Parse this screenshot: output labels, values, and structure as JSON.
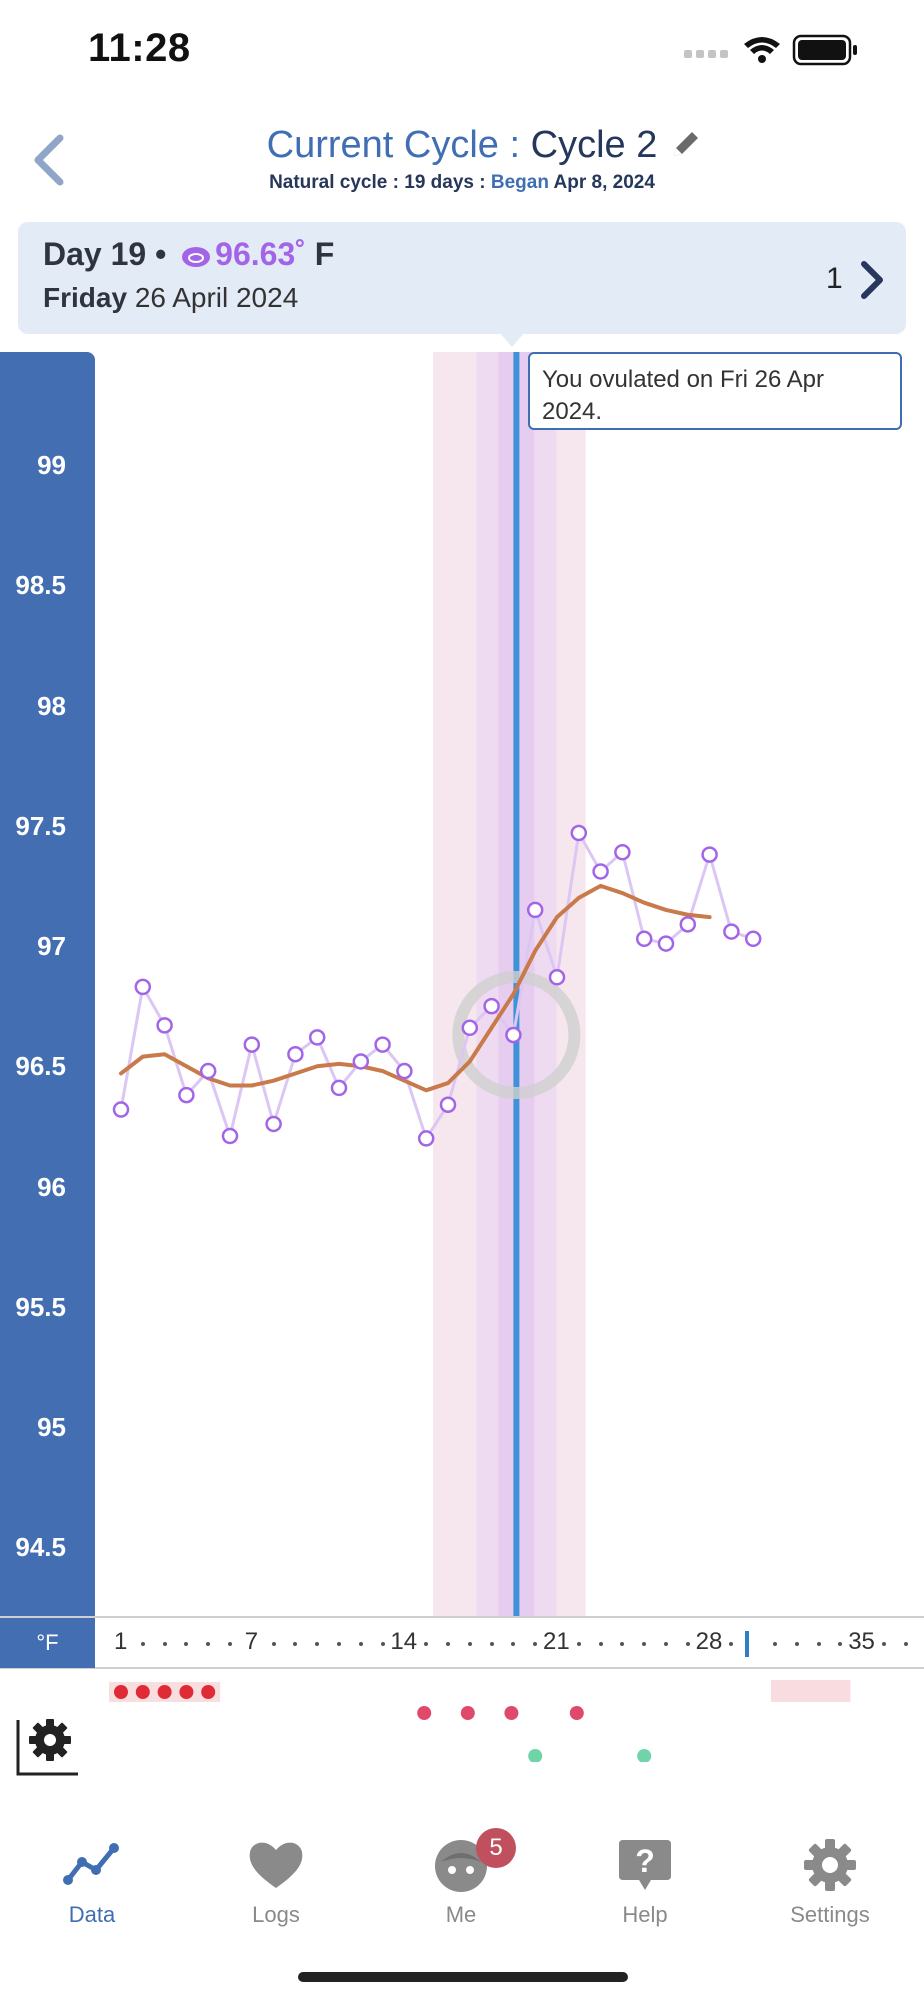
{
  "status": {
    "time": "11:28"
  },
  "header": {
    "title_label": "Current Cycle",
    "title_sep": " : ",
    "title_value": "Cycle 2",
    "sub_type": "Natural cycle",
    "sub_sep1": ":",
    "sub_days": "19 days",
    "sub_sep2": ":",
    "sub_began_label": "Began",
    "sub_began_date": "Apr 8, 2024"
  },
  "day_card": {
    "day": "Day 19 •",
    "temp": "96.63",
    "degree": "˚",
    "unit": "F",
    "weekday": "Friday",
    "date": "26 April 2024",
    "page": "1"
  },
  "tooltip": {
    "text": "You ovulated on Fri 26 Apr 2024."
  },
  "colors": {
    "axis_blue": "#436eb2",
    "temp_purple": "#a365e8",
    "trend_orange": "#c97a4a",
    "ovulation_line": "#3f92d8",
    "fertile_band": "#f6e6ee",
    "period_red": "#e02a35",
    "marker_pink": "#e04a6a",
    "marker_green": "#6fd4a8"
  },
  "chart_data": {
    "type": "line",
    "ylabel": "°F",
    "ylim": [
      94.25,
      99.25
    ],
    "yticks": [
      "99",
      "98.5",
      "98",
      "97.5",
      "97",
      "96.5",
      "96",
      "95.5",
      "95",
      "94.5"
    ],
    "yticks_values": [
      99,
      98.5,
      98,
      97.5,
      97,
      96.5,
      96,
      95.5,
      95,
      94.5
    ],
    "xticks": [
      "1",
      "7",
      "14",
      "21",
      "28",
      "35"
    ],
    "xticks_values": [
      1,
      7,
      14,
      21,
      28,
      35
    ],
    "xlim": [
      0.5,
      38.5
    ],
    "series": [
      {
        "x": [
          1,
          2,
          3,
          4,
          5,
          6,
          7,
          8,
          9,
          10,
          11,
          12,
          13,
          14,
          15,
          16,
          17,
          18,
          19,
          20,
          21,
          22,
          23,
          24,
          25,
          26,
          27,
          28,
          29,
          30
        ],
        "values": [
          96.32,
          96.83,
          96.67,
          96.38,
          96.48,
          96.21,
          96.59,
          96.26,
          96.55,
          96.62,
          96.41,
          96.52,
          96.59,
          96.48,
          96.2,
          96.34,
          96.66,
          96.75,
          96.63,
          97.15,
          96.87,
          97.47,
          97.31,
          97.39,
          97.03,
          97.01,
          97.09,
          97.38,
          97.06,
          97.03
        ]
      },
      {
        "x": [
          1,
          2,
          3,
          4,
          5,
          6,
          7,
          8,
          9,
          10,
          11,
          12,
          13,
          14,
          15,
          16,
          17,
          18,
          19,
          20,
          21,
          22,
          23,
          24,
          25,
          26,
          27,
          28
        ],
        "values": [
          96.47,
          96.54,
          96.55,
          96.5,
          96.45,
          96.42,
          96.42,
          96.44,
          96.47,
          96.5,
          96.51,
          96.5,
          96.48,
          96.44,
          96.4,
          96.43,
          96.52,
          96.66,
          96.8,
          96.98,
          97.12,
          97.2,
          97.25,
          97.22,
          97.18,
          97.15,
          97.13,
          97.12
        ]
      }
    ],
    "fertile_window": [
      15.5,
      22.5
    ],
    "ovulation_day": 19,
    "selected_day": 19,
    "selected_value": 96.63,
    "today_day": 30,
    "period_days": [
      1,
      2,
      3,
      4,
      5
    ],
    "period_prediction_days": [
      31,
      32,
      33,
      34
    ],
    "pink_marker_days": [
      15,
      17,
      19,
      22
    ],
    "green_marker_days": [
      20,
      25
    ]
  },
  "tabs": [
    {
      "label": "Data",
      "icon": "chart-line-icon",
      "active": true
    },
    {
      "label": "Logs",
      "icon": "heart-icon",
      "active": false
    },
    {
      "label": "Me",
      "icon": "face-icon",
      "active": false,
      "badge": "5"
    },
    {
      "label": "Help",
      "icon": "help-bubble-icon",
      "active": false
    },
    {
      "label": "Settings",
      "icon": "gear-icon",
      "active": false
    }
  ]
}
